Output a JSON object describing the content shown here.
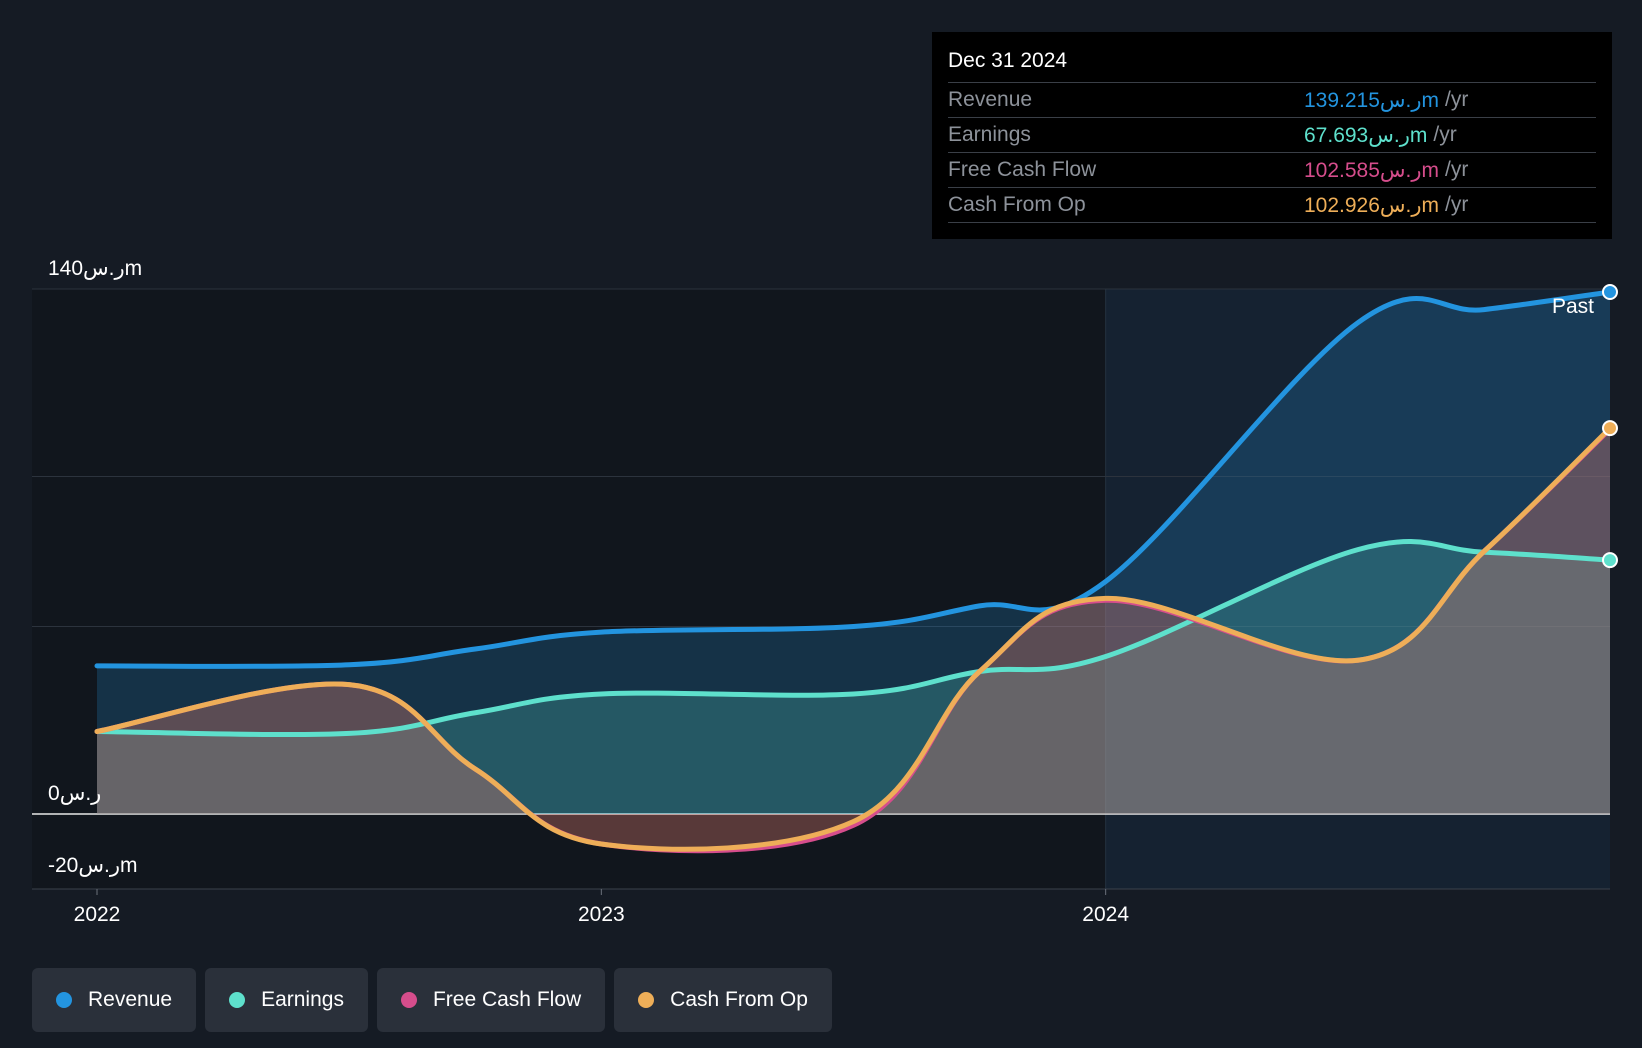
{
  "chart_data": {
    "type": "area",
    "x": [
      2022.0,
      2022.5,
      2022.75,
      2023.0,
      2023.5,
      2023.75,
      2024.0,
      2024.5,
      2024.75,
      2025.0
    ],
    "xlim": [
      2021.94,
      2025.0
    ],
    "ylim": [
      -20,
      140
    ],
    "yticks": [
      {
        "value": 140,
        "label": "140ر.سm"
      },
      {
        "value": 0,
        "label": "0ر.س"
      },
      {
        "value": -20,
        "label": "-20ر.سm"
      }
    ],
    "xticks": [
      {
        "value": 2022,
        "label": "2022"
      },
      {
        "value": 2023,
        "label": "2023"
      },
      {
        "value": 2024,
        "label": "2024"
      }
    ],
    "future_label": "Past",
    "series": [
      {
        "name": "Revenue",
        "color": "#2394df",
        "values": [
          39.5,
          39.8,
          44,
          48.5,
          50,
          55.5,
          62,
          131,
          134.5,
          139.2
        ]
      },
      {
        "name": "Earnings",
        "color": "#5ee0cc",
        "values": [
          22,
          21.5,
          27,
          32,
          32,
          38,
          42,
          70.5,
          69.8,
          67.7
        ]
      },
      {
        "name": "Free Cash Flow",
        "color": "#d64d8c",
        "values": [
          22,
          34.5,
          12,
          -8,
          -3,
          38,
          57,
          41,
          70,
          102.6
        ]
      },
      {
        "name": "Cash From Op",
        "color": "#eeae58",
        "values": [
          22,
          34.5,
          12,
          -8,
          -2,
          38,
          57.5,
          41,
          70,
          102.9
        ]
      }
    ]
  },
  "tooltip": {
    "date": "Dec 31 2024",
    "rows": [
      {
        "label": "Revenue",
        "value": "139.215ر.سm",
        "unit": "/yr",
        "color": "#2394df"
      },
      {
        "label": "Earnings",
        "value": "67.693ر.سm",
        "unit": "/yr",
        "color": "#5ee0cc"
      },
      {
        "label": "Free Cash Flow",
        "value": "102.585ر.سm",
        "unit": "/yr",
        "color": "#d64d8c"
      },
      {
        "label": "Cash From Op",
        "value": "102.926ر.سm",
        "unit": "/yr",
        "color": "#eeae58"
      }
    ]
  },
  "legend": [
    {
      "label": "Revenue",
      "color": "#2394df"
    },
    {
      "label": "Earnings",
      "color": "#5ee0cc"
    },
    {
      "label": "Free Cash Flow",
      "color": "#d64d8c"
    },
    {
      "label": "Cash From Op",
      "color": "#eeae58"
    }
  ]
}
